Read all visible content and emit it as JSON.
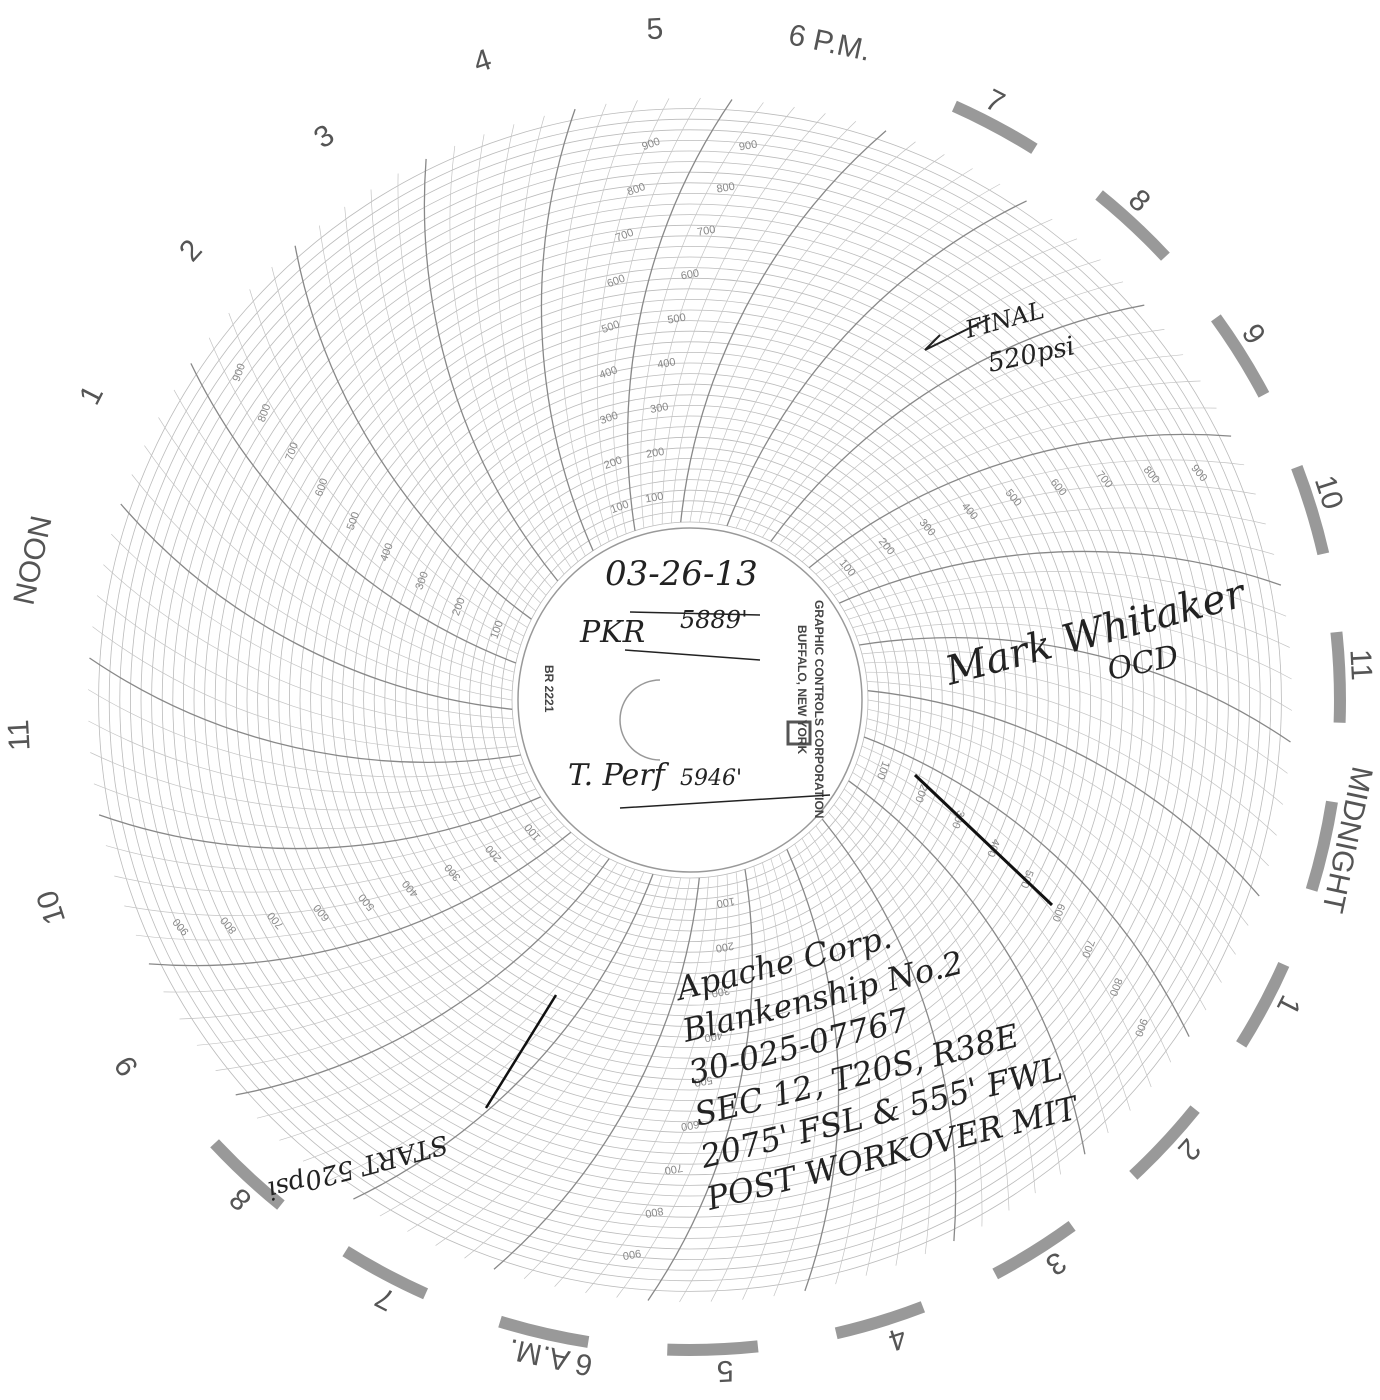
{
  "dial": {
    "hours": [
      "5",
      "6 P.M.",
      "7",
      "8",
      "9",
      "10",
      "11",
      "MIDNIGHT",
      "1",
      "2",
      "3",
      "4",
      "5",
      "6 A.M.",
      "7",
      "8",
      "9",
      "10",
      "11",
      "NOON",
      "1",
      "2",
      "3",
      "4"
    ]
  },
  "scale": {
    "labels": [
      "100",
      "200",
      "300",
      "400",
      "500",
      "600",
      "700",
      "800",
      "900"
    ]
  },
  "center": {
    "printed": [
      "GRAPHIC CONTROLS CORPORATION",
      "BUFFALO, NEW YORK"
    ],
    "form": "BR 2221",
    "date": "03-26-13",
    "packer_label": "PKR",
    "packer_depth": "5889'",
    "perf_label": "T. Perf",
    "perf_depth": "5946'"
  },
  "notes": {
    "final": [
      "FINAL",
      "520psi"
    ],
    "signature": "Mark Whitaker",
    "agency": "OCD",
    "start": "START 520psi",
    "well": [
      "Apache Corp.",
      "Blankenship No.2",
      "30-025-07767",
      "SEC 12, T20S, R38E",
      "2075' FSL & 555' FWL",
      "POST WORKOVER MIT"
    ]
  }
}
